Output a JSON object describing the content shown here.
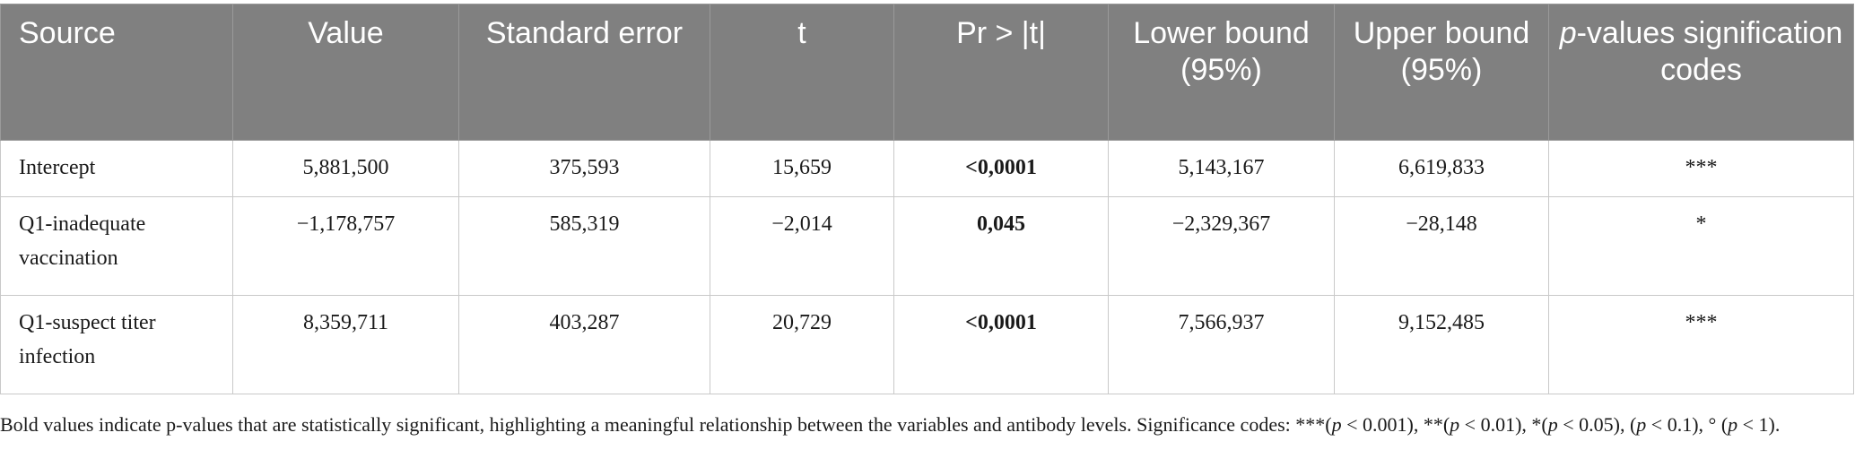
{
  "table": {
    "headers": {
      "source": "Source",
      "value": "Value",
      "standard_error": "Standard error",
      "t": "t",
      "pr": "Pr > |t|",
      "lower": "Lower bound (95%)",
      "upper": "Upper bound (95%)",
      "pvalues_italic": "p",
      "pvalues_rest": "-values signification codes"
    },
    "rows": [
      {
        "source": "Intercept",
        "value": "5,881,500",
        "se": "375,593",
        "t": "15,659",
        "pr": "<0,0001",
        "lower": "5,143,167",
        "upper": "6,619,833",
        "code": "***"
      },
      {
        "source": "Q1-inadequate vaccination",
        "value": "−1,178,757",
        "se": "585,319",
        "t": "−2,014",
        "pr": "0,045",
        "lower": "−2,329,367",
        "upper": "−28,148",
        "code": "*"
      },
      {
        "source": "Q1-suspect titer infection",
        "value": "8,359,711",
        "se": "403,287",
        "t": "20,729",
        "pr": "<0,0001",
        "lower": "7,566,937",
        "upper": "9,152,485",
        "code": "***"
      }
    ]
  },
  "footnote": {
    "s1": "Bold values indicate p-values that are statistically significant, highlighting a meaningful relationship between the variables and antibody levels. Significance codes: ***(",
    "p": "p",
    "s2": " < 0.001), **(",
    "s3": " < 0.01), *(",
    "s4": " < 0.05), (",
    "s5": " < 0.1), ° (",
    "s6": " < 1)."
  }
}
